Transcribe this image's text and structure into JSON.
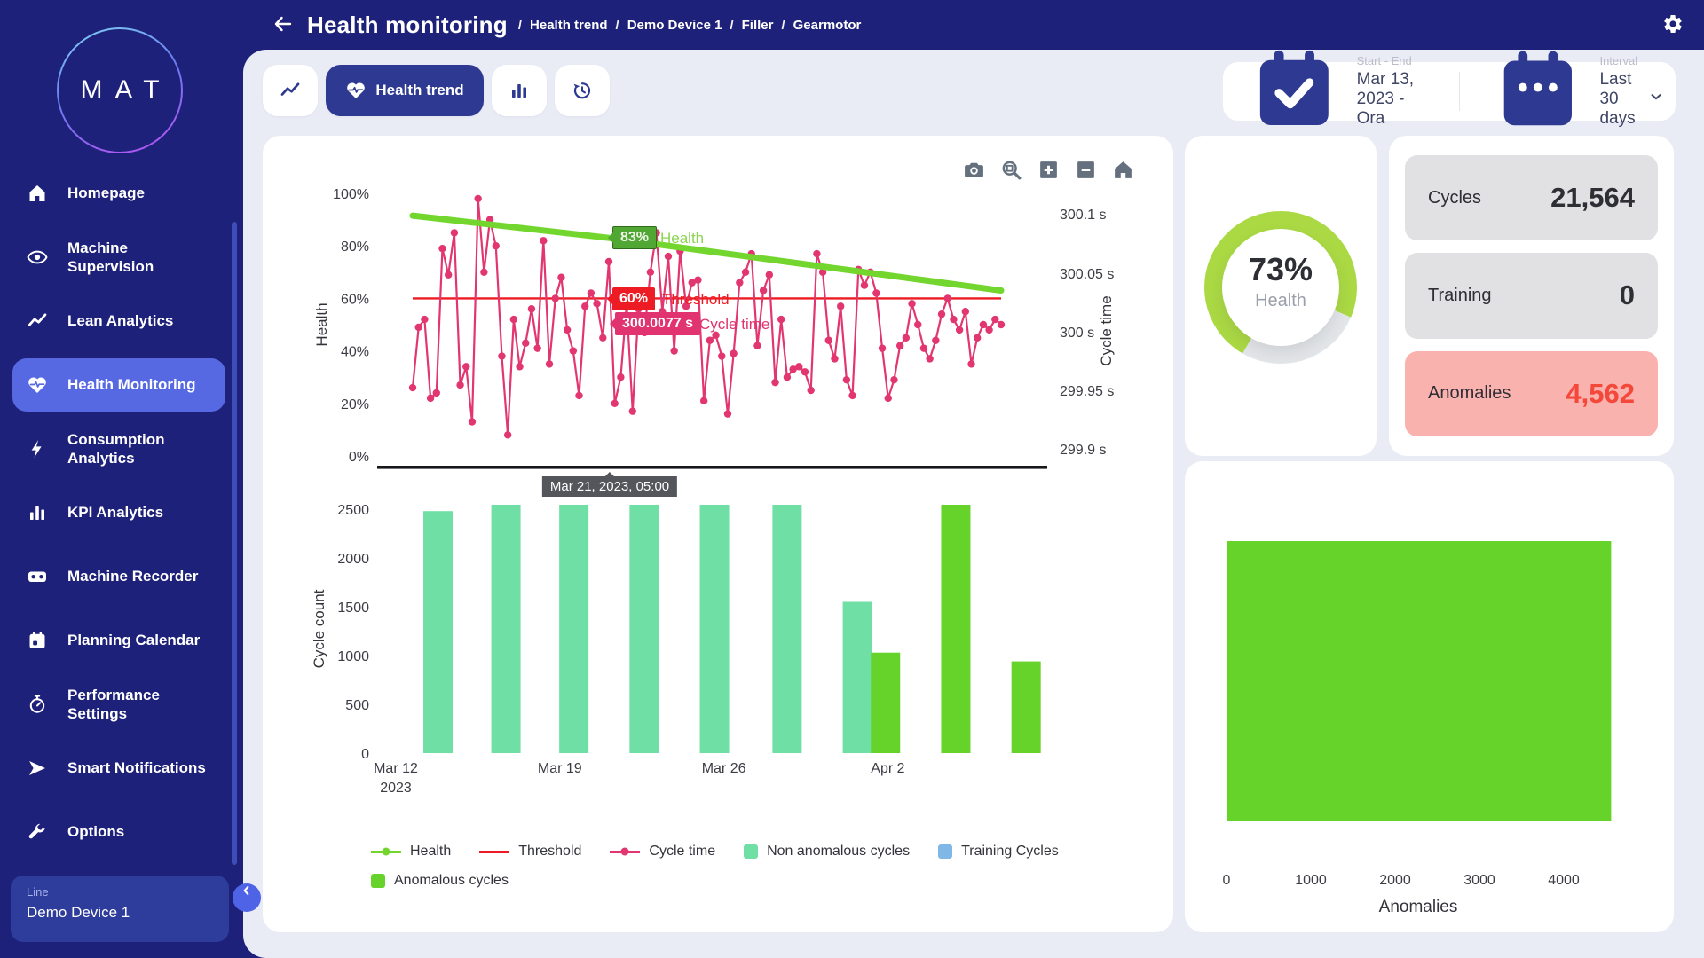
{
  "app": {
    "logo_text": "MAT"
  },
  "header": {
    "title": "Health monitoring",
    "breadcrumbs": [
      "Health trend",
      "Demo Device 1",
      "Filler",
      "Gearmotor"
    ]
  },
  "sidebar": {
    "items": [
      {
        "icon": "home",
        "label": "Homepage",
        "active": false
      },
      {
        "icon": "eye",
        "label": "Machine Supervision",
        "active": false
      },
      {
        "icon": "trend",
        "label": "Lean Analytics",
        "active": false
      },
      {
        "icon": "heart",
        "label": "Health Monitoring",
        "active": true
      },
      {
        "icon": "bolt",
        "label": "Consumption Analytics",
        "active": false
      },
      {
        "icon": "bars",
        "label": "KPI Analytics",
        "active": false
      },
      {
        "icon": "recorder",
        "label": "Machine Recorder",
        "active": false
      },
      {
        "icon": "calendar",
        "label": "Planning Calendar",
        "active": false
      },
      {
        "icon": "stopwatch",
        "label": "Performance Settings",
        "active": false
      },
      {
        "icon": "send",
        "label": "Smart Notifications",
        "active": false
      },
      {
        "icon": "wrench",
        "label": "Options",
        "active": false
      }
    ],
    "device": {
      "label": "Line",
      "value": "Demo Device 1"
    }
  },
  "toolbar": {
    "tabs": [
      {
        "icon": "trend",
        "label": "",
        "active": false
      },
      {
        "icon": "heart",
        "label": "Health trend",
        "active": true
      },
      {
        "icon": "bars",
        "label": "",
        "active": false
      },
      {
        "icon": "history",
        "label": "",
        "active": false
      }
    ],
    "range": {
      "icon": "calendar-check",
      "label": "Start - End",
      "value": "Mar 13, 2023 - Ora"
    },
    "interval": {
      "icon": "calendar-dots",
      "label": "Interval",
      "value": "Last 30 days"
    }
  },
  "modebar": [
    "camera",
    "zoom-box",
    "zoom-in",
    "zoom-out",
    "home-reset"
  ],
  "chart_data": [
    {
      "type": "line",
      "left_axis": {
        "label": "Health",
        "ticks": [
          "0%",
          "20%",
          "40%",
          "60%",
          "80%",
          "100%"
        ],
        "range": [
          0,
          100
        ]
      },
      "right_axis": {
        "label": "Cycle time",
        "ticks": [
          "299.9 s",
          "299.95 s",
          "300 s",
          "300.05 s",
          "300.1 s"
        ],
        "range": [
          299.9,
          300.1
        ]
      },
      "series": [
        {
          "name": "Health",
          "color": "#72d62e",
          "points_pct": [
            [
              0,
              91.5
            ],
            [
              33.5,
              83
            ],
            [
              100,
              63
            ]
          ]
        },
        {
          "name": "Threshold",
          "color": "#ed1c24",
          "value_pct": 60
        },
        {
          "name": "Cycle time",
          "color": "#e23670",
          "values_pct": [
            26,
            49,
            52,
            22,
            24,
            79,
            69,
            85,
            27,
            34,
            13,
            98,
            70,
            90,
            80,
            38,
            8,
            52,
            34,
            43,
            56,
            41,
            82,
            35,
            60,
            68,
            48,
            40,
            23,
            57,
            62,
            58,
            45,
            74,
            20,
            30,
            58,
            17,
            56,
            47,
            70,
            85,
            55,
            76,
            40,
            78,
            57,
            66,
            67,
            21,
            44,
            46,
            38,
            16,
            39,
            66,
            70,
            77,
            42,
            63,
            69,
            28,
            52,
            30,
            33,
            34,
            32,
            25,
            77,
            70,
            44,
            37,
            57,
            29,
            23,
            71,
            65,
            70,
            62,
            41,
            22,
            29,
            42,
            45,
            58,
            50,
            41,
            37,
            44,
            54,
            60,
            52,
            48,
            55,
            35,
            45,
            50,
            48,
            52,
            50
          ]
        }
      ],
      "annotations": {
        "health": "83%",
        "health_label": "Health",
        "threshold": "60%",
        "threshold_label": "Threshold",
        "cycle": "300.0077 s",
        "cycle_label": "Cycle time",
        "x_tooltip": "Mar 21, 2023, 05:00",
        "hover_pos_pct": 33.5
      }
    },
    {
      "type": "bar",
      "ylabel": "Cycle count",
      "yticks": [
        0,
        500,
        1000,
        1500,
        2000,
        2500
      ],
      "xticks": [
        {
          "label": "Mar 12",
          "sub": "2023",
          "day": 0
        },
        {
          "label": "Mar 19",
          "sub": "",
          "day": 7
        },
        {
          "label": "Mar 26",
          "sub": "",
          "day": 14
        },
        {
          "label": "Apr 2",
          "sub": "",
          "day": 21
        }
      ],
      "bars": [
        {
          "day": 1.8,
          "value": 2480,
          "type": "non_anomalous"
        },
        {
          "day": 4.7,
          "value": 2550,
          "type": "non_anomalous"
        },
        {
          "day": 7.6,
          "value": 2550,
          "type": "non_anomalous"
        },
        {
          "day": 10.6,
          "value": 2550,
          "type": "non_anomalous"
        },
        {
          "day": 13.6,
          "value": 2550,
          "type": "non_anomalous"
        },
        {
          "day": 16.7,
          "value": 2550,
          "type": "non_anomalous"
        },
        {
          "day": 19.7,
          "value": 1550,
          "type": "non_anomalous"
        },
        {
          "day": 20.9,
          "value": 1030,
          "type": "anomalous"
        },
        {
          "day": 23.9,
          "value": 2550,
          "type": "anomalous"
        },
        {
          "day": 26.9,
          "value": 940,
          "type": "anomalous"
        }
      ],
      "bar_colors": {
        "non_anomalous": "#6fdfa5",
        "anomalous": "#65d32a",
        "training": "#7fb8e6"
      }
    },
    {
      "type": "bar",
      "orientation": "horizontal",
      "xlabel": "Anomalies",
      "xticks": [
        0,
        1000,
        2000,
        3000,
        4000
      ],
      "xmax": 4800,
      "bars": [
        {
          "label": "Anomalies",
          "value": 4562,
          "color": "#65d32a"
        }
      ]
    }
  ],
  "legend": [
    {
      "label": "Health",
      "swatch": "line-dot",
      "color": "#72d62e"
    },
    {
      "label": "Threshold",
      "swatch": "line",
      "color": "#ed1c24"
    },
    {
      "label": "Cycle time",
      "swatch": "line-dot",
      "color": "#e23670"
    },
    {
      "label": "Non anomalous cycles",
      "swatch": "square",
      "color": "#6fdfa5"
    },
    {
      "label": "Training Cycles",
      "swatch": "square",
      "color": "#7fb8e6"
    },
    {
      "label": "Anomalous cycles",
      "swatch": "square",
      "color": "#65d32a"
    }
  ],
  "gauge": {
    "display": "73%",
    "label": "Health",
    "value": 73,
    "color": "#abd944"
  },
  "stats": [
    {
      "label": "Cycles",
      "value": "21,564",
      "variant": "default"
    },
    {
      "label": "Training",
      "value": "0",
      "variant": "default"
    },
    {
      "label": "Anomalies",
      "value": "4,562",
      "variant": "alert"
    }
  ],
  "colors": {
    "accent": "#5669e2",
    "navy": "#1e2179",
    "tab_active": "#2e3a92",
    "bg": "#e9ebf5"
  }
}
